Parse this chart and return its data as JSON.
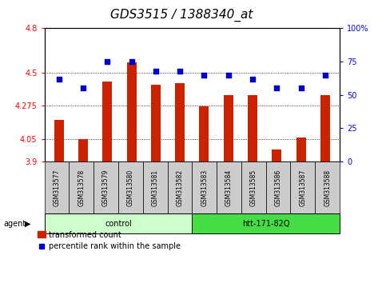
{
  "title": "GDS3515 / 1388340_at",
  "samples": [
    "GSM313577",
    "GSM313578",
    "GSM313579",
    "GSM313580",
    "GSM313581",
    "GSM313582",
    "GSM313583",
    "GSM313584",
    "GSM313585",
    "GSM313586",
    "GSM313587",
    "GSM313588"
  ],
  "red_values": [
    4.18,
    4.05,
    4.44,
    4.57,
    4.42,
    4.43,
    4.27,
    4.35,
    4.35,
    3.98,
    4.06,
    4.35
  ],
  "blue_values_pct": [
    62,
    55,
    75,
    75,
    68,
    68,
    65,
    65,
    62,
    55,
    55,
    65
  ],
  "y_min": 3.9,
  "y_max": 4.8,
  "y_ticks": [
    3.9,
    4.05,
    4.275,
    4.5,
    4.8
  ],
  "y_tick_labels": [
    "3.9",
    "4.05",
    "4.275",
    "4.5",
    "4.8"
  ],
  "right_y_ticks": [
    0,
    25,
    50,
    75,
    100
  ],
  "right_y_labels": [
    "0",
    "25",
    "50",
    "75",
    "100%"
  ],
  "bar_color": "#cc2200",
  "dot_color": "#0000cc",
  "bar_bottom": 3.9,
  "group1_label": "control",
  "group2_label": "htt-171-82Q",
  "agent_label": "agent",
  "legend1": "transformed count",
  "legend2": "percentile rank within the sample",
  "plot_bg": "#ffffff",
  "tick_label_bg": "#cccccc",
  "group_bg1": "#ccffcc",
  "group_bg2": "#44dd44",
  "title_fontsize": 11,
  "tick_fontsize": 7,
  "legend_fontsize": 7
}
